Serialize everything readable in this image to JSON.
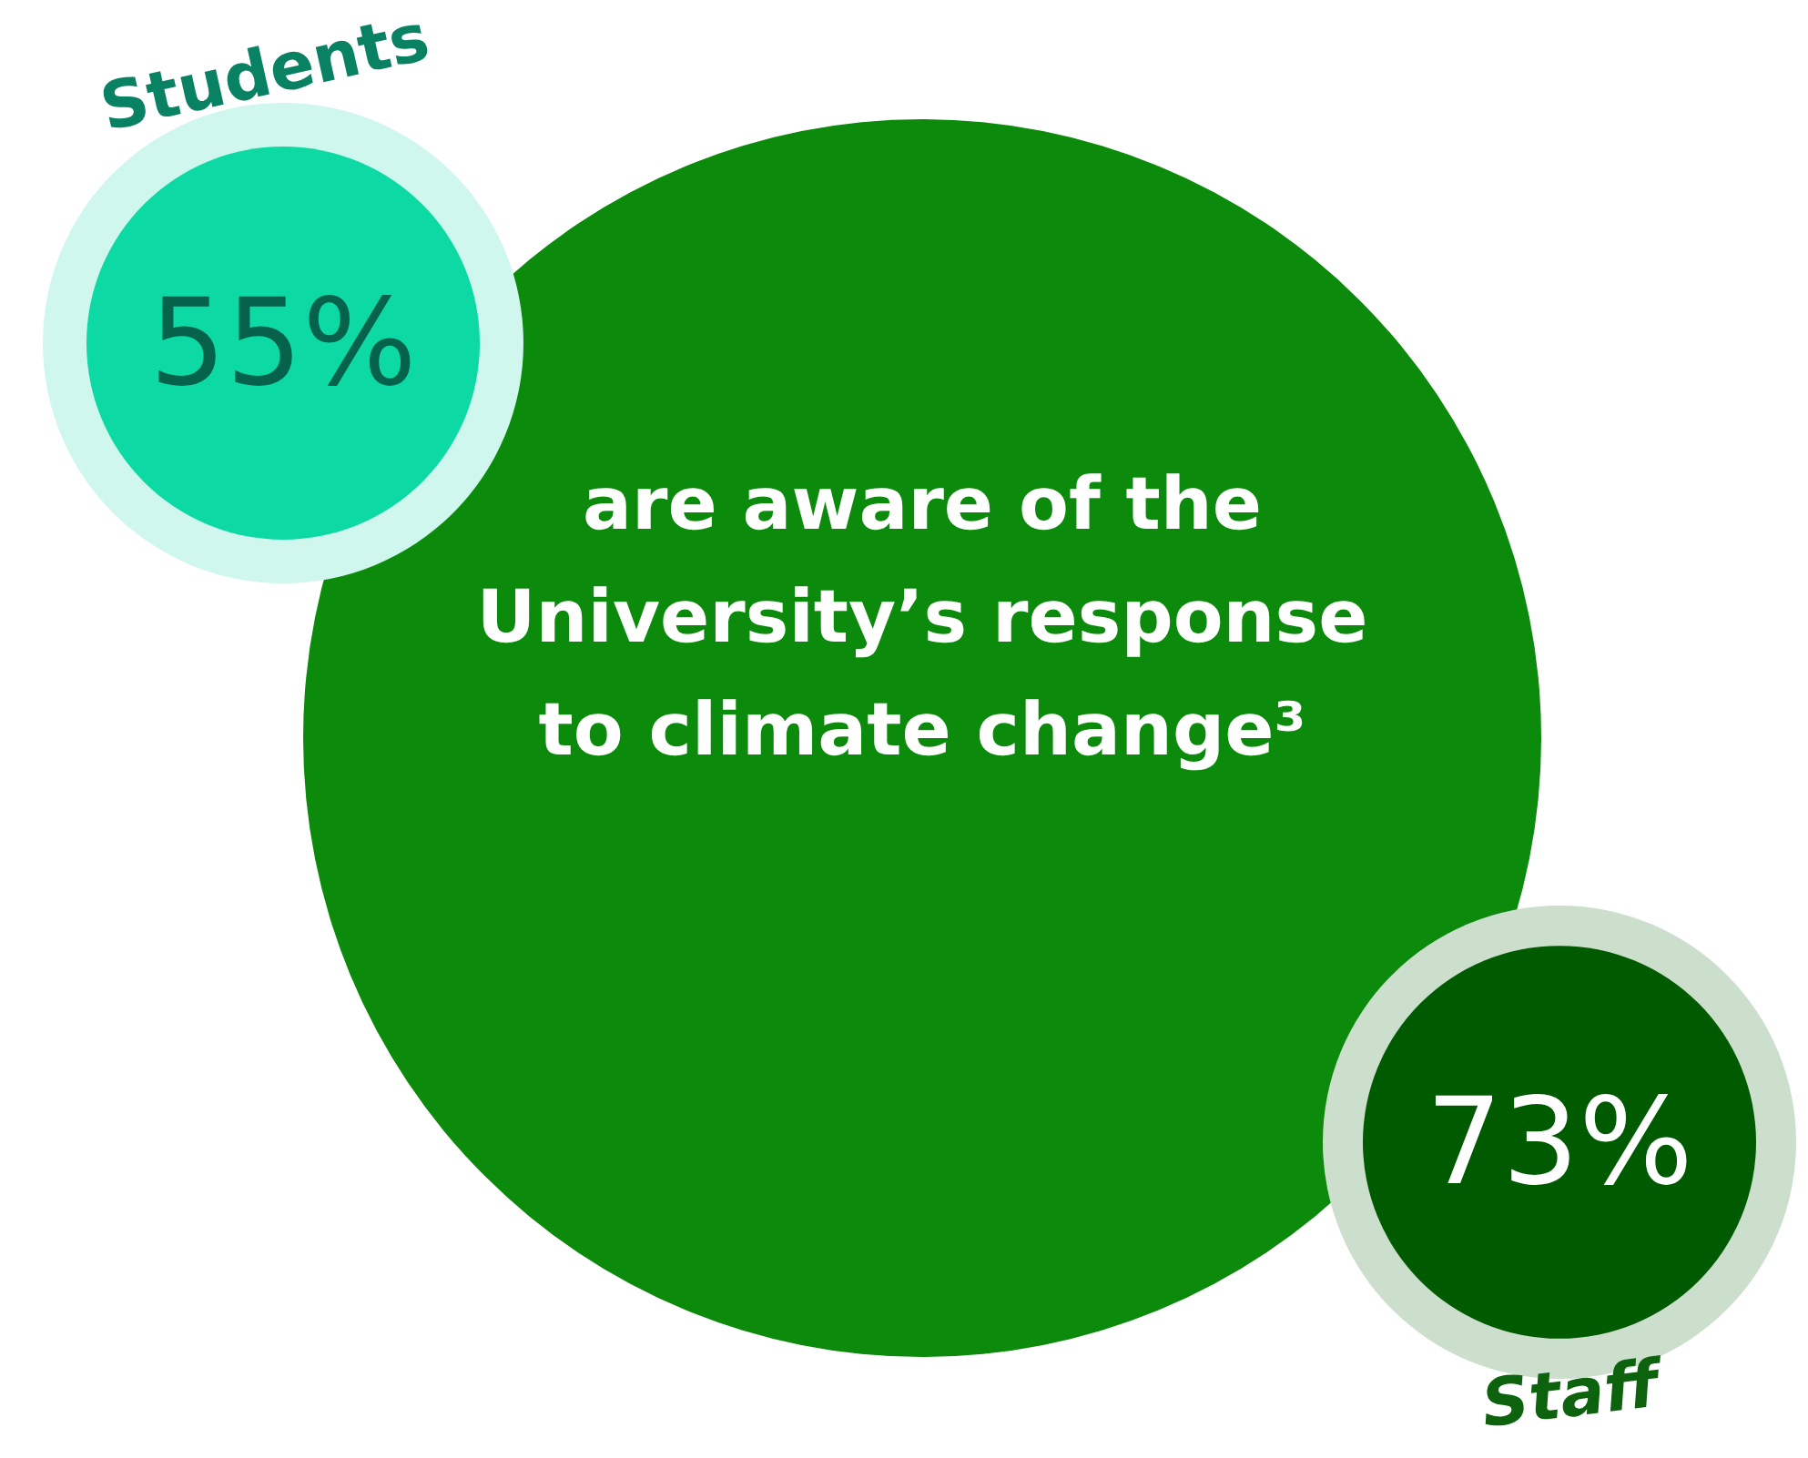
{
  "chart_data": {
    "type": "other",
    "title": "are aware of the University’s response to climate change³",
    "categories": [
      "Students",
      "Staff"
    ],
    "values": [
      55,
      73
    ],
    "value_labels": [
      "55%",
      "73%"
    ],
    "colors": [
      "#0dd9a5",
      "#005a00"
    ]
  }
}
